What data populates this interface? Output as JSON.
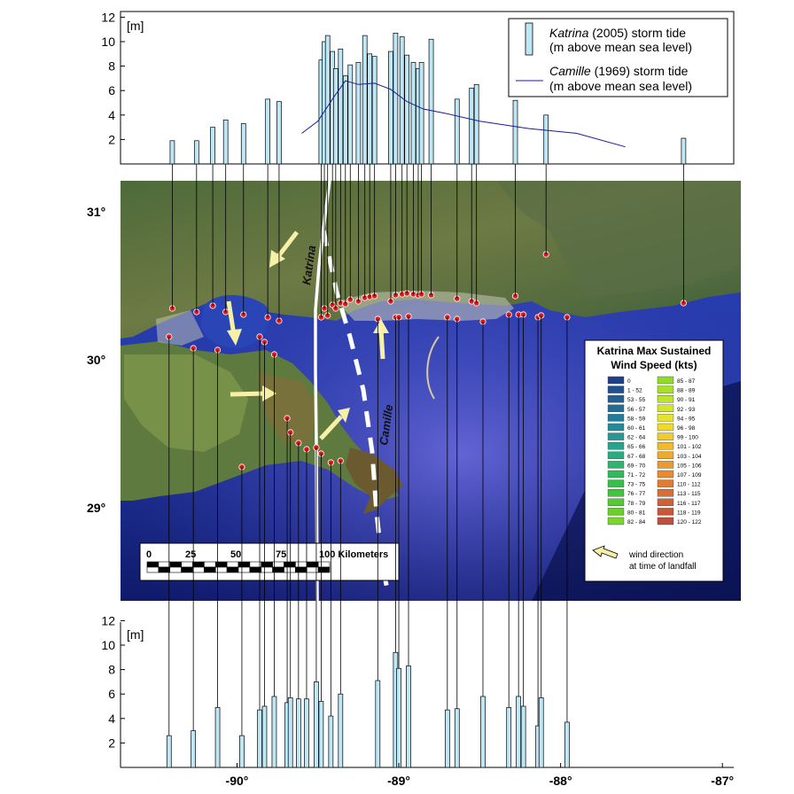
{
  "top_chart": {
    "unit_label": "[m]",
    "y_ticks": [
      "12",
      "10",
      "8",
      "6",
      "4",
      "2"
    ],
    "legend": {
      "katrina_name": "Katrina",
      "katrina_line1_rest": " (2005) storm tide",
      "katrina_line2": "(m above mean sea level)",
      "camille_name": "Camille",
      "camille_line1_rest": " (1969) storm tide",
      "camille_line2": "(m above mean sea level)"
    }
  },
  "bottom_chart": {
    "unit_label": "[m]",
    "y_ticks": [
      "12",
      "10",
      "8",
      "6",
      "4",
      "2"
    ],
    "x_ticks": [
      "-90°",
      "-89°",
      "-88°",
      "-87°"
    ]
  },
  "map": {
    "lat_labels": [
      "31°",
      "30°",
      "29°"
    ],
    "track_labels": {
      "katrina": "Katrina",
      "camille": "Camille"
    },
    "scale_bar": {
      "ticks": [
        "0",
        "25",
        "50",
        "75",
        "100 Kilometers"
      ]
    },
    "wind_legend": {
      "title_line1": "Katrina Max Sustained",
      "title_line2": "Wind Speed (kts)",
      "classes_left": [
        {
          "label": "0",
          "color": "#1f3f86"
        },
        {
          "label": "1 - 52",
          "color": "#1f4f8e"
        },
        {
          "label": "53 - 55",
          "color": "#1f5f93"
        },
        {
          "label": "56 - 57",
          "color": "#206d96"
        },
        {
          "label": "58 - 59",
          "color": "#217c99"
        },
        {
          "label": "60 - 61",
          "color": "#238b99"
        },
        {
          "label": "62 - 64",
          "color": "#249896"
        },
        {
          "label": "65 - 66",
          "color": "#26a48d"
        },
        {
          "label": "67 - 68",
          "color": "#29ad80"
        },
        {
          "label": "69 - 70",
          "color": "#2db46f"
        },
        {
          "label": "71 - 72",
          "color": "#31ba5d"
        },
        {
          "label": "73 - 75",
          "color": "#36c04b"
        },
        {
          "label": "76 - 77",
          "color": "#3fc63b"
        },
        {
          "label": "78 - 79",
          "color": "#52cc30"
        },
        {
          "label": "80 - 81",
          "color": "#66d12b"
        },
        {
          "label": "82 - 84",
          "color": "#7ad628"
        }
      ],
      "classes_right": [
        {
          "label": "85 - 87",
          "color": "#8fdc26"
        },
        {
          "label": "88 - 89",
          "color": "#a6e126"
        },
        {
          "label": "90 - 91",
          "color": "#bde427"
        },
        {
          "label": "92 - 93",
          "color": "#d3e629"
        },
        {
          "label": "94 - 95",
          "color": "#e5e42b"
        },
        {
          "label": "96 - 98",
          "color": "#efda2c"
        },
        {
          "label": "99 - 100",
          "color": "#f0cb2c"
        },
        {
          "label": "101 - 102",
          "color": "#efbb2c"
        },
        {
          "label": "103 - 104",
          "color": "#edab2d"
        },
        {
          "label": "105 - 106",
          "color": "#ea9b2f"
        },
        {
          "label": "107 - 109",
          "color": "#e68b31"
        },
        {
          "label": "110 - 112",
          "color": "#e07b33"
        },
        {
          "label": "113 - 115",
          "color": "#d86d35"
        },
        {
          "label": "116 - 117",
          "color": "#cf6137"
        },
        {
          "label": "118 - 119",
          "color": "#c55839"
        },
        {
          "label": "120 - 122",
          "color": "#bb503b"
        }
      ],
      "arrow_caption_line1": "wind direction",
      "arrow_caption_line2": "at time of landfall"
    }
  },
  "chart_data": [
    {
      "type": "bar",
      "panel": "top",
      "xlim": [
        -90.72,
        -86.93
      ],
      "ylim": [
        0,
        12
      ],
      "series": [
        {
          "name": "Katrina (2005) storm tide (m above mean sea level)",
          "x_lon": [
            -90.4,
            -90.25,
            -90.15,
            -90.07,
            -89.96,
            -89.81,
            -89.74,
            -89.48,
            -89.46,
            -89.44,
            -89.41,
            -89.39,
            -89.36,
            -89.33,
            -89.3,
            -89.25,
            -89.21,
            -89.18,
            -89.15,
            -89.05,
            -89.02,
            -88.98,
            -88.95,
            -88.91,
            -88.88,
            -88.86,
            -88.8,
            -88.64,
            -88.55,
            -88.52,
            -88.28,
            -88.09,
            -87.24
          ],
          "values": [
            1.9,
            1.9,
            3.0,
            3.6,
            3.3,
            5.3,
            5.1,
            8.5,
            10.0,
            10.5,
            9.2,
            7.8,
            9.4,
            7.2,
            8.1,
            8.3,
            10.5,
            9.0,
            8.8,
            9.2,
            10.7,
            10.4,
            8.9,
            8.3,
            7.8,
            8.3,
            10.2,
            5.3,
            6.2,
            6.5,
            5.2,
            4.0,
            2.1
          ]
        },
        {
          "name": "Camille (1969) storm tide (m above mean sea level)",
          "type": "line",
          "x_lon": [
            -89.6,
            -89.5,
            -89.4,
            -89.33,
            -89.25,
            -89.15,
            -89.05,
            -88.95,
            -88.85,
            -88.7,
            -88.5,
            -88.2,
            -87.9,
            -87.6
          ],
          "values": [
            2.5,
            3.5,
            5.5,
            6.8,
            6.5,
            6.6,
            6.1,
            5.1,
            4.5,
            4.1,
            3.5,
            2.9,
            2.5,
            1.4
          ]
        }
      ]
    },
    {
      "type": "bar",
      "panel": "bottom",
      "xlim": [
        -90.72,
        -86.93
      ],
      "ylim": [
        0,
        12
      ],
      "x_ticks": [
        -90,
        -89,
        -88,
        -87
      ],
      "series": [
        {
          "x_lon": [
            -90.42,
            -90.27,
            -90.12,
            -89.97,
            -89.86,
            -89.83,
            -89.77,
            -89.69,
            -89.67,
            -89.62,
            -89.57,
            -89.51,
            -89.48,
            -89.42,
            -89.36,
            -89.13,
            -89.02,
            -89.0,
            -88.94,
            -88.7,
            -88.64,
            -88.48,
            -88.32,
            -88.26,
            -88.23,
            -88.14,
            -88.12,
            -87.96
          ],
          "values": [
            2.6,
            3.0,
            4.9,
            2.6,
            4.7,
            5.0,
            5.8,
            5.3,
            5.7,
            5.6,
            5.6,
            7.0,
            5.4,
            4.2,
            6.0,
            7.1,
            9.4,
            8.1,
            8.3,
            4.7,
            4.8,
            5.8,
            4.9,
            5.8,
            5.0,
            3.4,
            5.7,
            3.7
          ]
        }
      ]
    }
  ]
}
